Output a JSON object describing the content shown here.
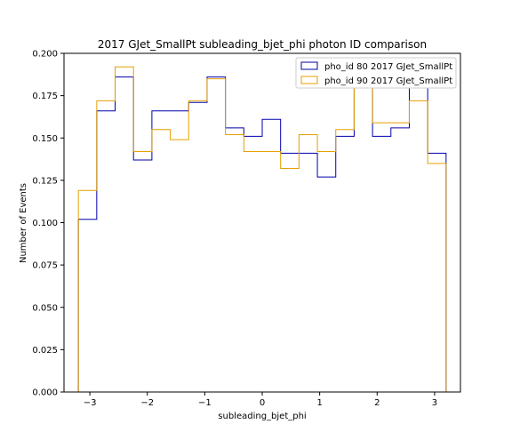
{
  "chart_data": {
    "type": "step",
    "title": "2017 GJet_SmallPt subleading_bjet_phi photon ID comparison",
    "xlabel": "subleading_bjet_phi",
    "ylabel": "Number of Events",
    "xlim": [
      -3.45,
      3.45
    ],
    "ylim": [
      0,
      0.2
    ],
    "xticks": [
      -3,
      -2,
      -1,
      0,
      1,
      2,
      3
    ],
    "xtick_labels": [
      "−3",
      "−2",
      "−1",
      "0",
      "1",
      "2",
      "3"
    ],
    "yticks": [
      0,
      0.025,
      0.05,
      0.075,
      0.1,
      0.125,
      0.15,
      0.175,
      0.2
    ],
    "ytick_labels": [
      "0.000",
      "0.025",
      "0.050",
      "0.075",
      "0.100",
      "0.125",
      "0.150",
      "0.175",
      "0.200"
    ],
    "bin_edges": [
      -3.2,
      -2.88,
      -2.56,
      -2.24,
      -1.92,
      -1.6,
      -1.28,
      -0.96,
      -0.64,
      -0.32,
      0.0,
      0.32,
      0.64,
      0.96,
      1.28,
      1.6,
      1.92,
      2.24,
      2.56,
      2.88,
      3.2
    ],
    "series": [
      {
        "name": "pho_id 80 2017 GJet_SmallPt",
        "color": "#0000aa",
        "values": [
          0.102,
          0.166,
          0.186,
          0.137,
          0.166,
          0.166,
          0.171,
          0.186,
          0.156,
          0.151,
          0.161,
          0.141,
          0.141,
          0.127,
          0.151,
          0.181,
          0.151,
          0.156,
          0.186,
          0.141
        ]
      },
      {
        "name": "pho_id 90 2017 GJet_SmallPt",
        "color": "#e69f00",
        "values": [
          0.119,
          0.172,
          0.192,
          0.142,
          0.155,
          0.149,
          0.172,
          0.185,
          0.152,
          0.142,
          0.142,
          0.132,
          0.152,
          0.142,
          0.155,
          0.186,
          0.159,
          0.159,
          0.172,
          0.135
        ]
      }
    ],
    "legend_placement": "top-right",
    "grid": false
  }
}
